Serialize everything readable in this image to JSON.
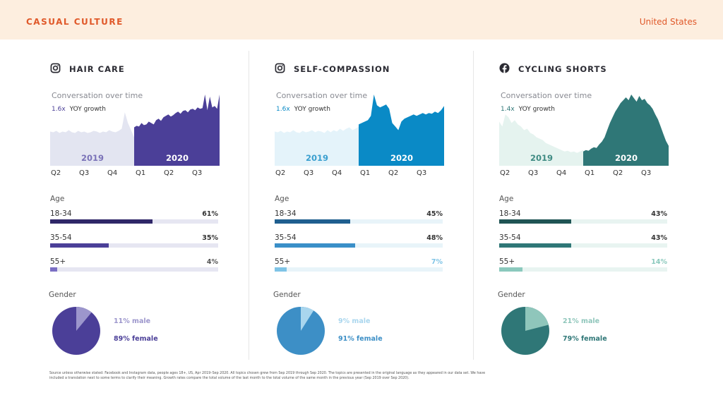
{
  "header": {
    "brand": "CASUAL CULTURE",
    "region": "United States"
  },
  "footnote": "Source unless otherwise stated: Facebook and Instagram data, people ages 18+, US, Apr 2019–Sep 2020. All topics chosen grew from Sep 2019 through Sep 2020. The topics are presented in the original language as they appeared in our data set. We have included a translation next to some terms to clarify their meaning. Growth rates compare the total volume of the last month to the total volume of the same month in the previous year (Sep 2019 over Sep 2020).",
  "chart_data": [
    {
      "type": "area",
      "title": "HAIR CARE",
      "platform": "instagram-icon",
      "subtitle": "Conversation over time",
      "growth_value": "1.6x",
      "growth_label": "YOY growth",
      "quarters": [
        "Q2",
        "Q3",
        "Q4",
        "Q1",
        "Q2",
        "Q3"
      ],
      "years": [
        "2019",
        "2020"
      ],
      "colors": {
        "y2019": "#e3e5f1",
        "y2020": "#4b3f98",
        "year2019_text": "#7a72b8",
        "year2020_text": "#ffffff",
        "accent": "#4b3f98"
      },
      "series_2019": [
        48,
        47,
        49,
        46,
        48,
        47,
        50,
        47,
        46,
        49,
        47,
        48,
        46,
        47,
        49,
        48,
        46,
        48,
        47,
        50,
        48,
        47,
        49,
        52,
        75,
        60,
        50,
        40
      ],
      "series_2020": [
        54,
        56,
        55,
        60,
        57,
        58,
        62,
        60,
        58,
        64,
        66,
        63,
        68,
        70,
        72,
        69,
        71,
        74,
        76,
        73,
        77,
        78,
        75,
        79,
        80,
        78,
        82,
        80,
        81,
        100,
        78,
        97,
        82,
        84,
        80,
        100
      ],
      "age": [
        {
          "label": "18-34",
          "value": 61,
          "color": "#2f2768"
        },
        {
          "label": "35-54",
          "value": 35,
          "color": "#4b3f98"
        },
        {
          "label": "55+",
          "value": 4,
          "color": "#7b6fc4"
        }
      ],
      "age_track": "#e6e6f2",
      "age_value_colors": [
        "#333333",
        "#333333",
        "#555555"
      ],
      "gender": {
        "male": 11,
        "female": 89,
        "male_label": "11% male",
        "female_label": "89% female",
        "male_color": "#9c96cc",
        "female_color": "#4b3f98",
        "male_text": "#9c96cc",
        "female_text": "#4b3f98"
      }
    },
    {
      "type": "area",
      "title": "SELF-COMPASSION",
      "platform": "instagram-icon",
      "subtitle": "Conversation over time",
      "growth_value": "1.6x",
      "growth_label": "YOY growth",
      "quarters": [
        "Q2",
        "Q3",
        "Q4",
        "Q1",
        "Q2",
        "Q3"
      ],
      "years": [
        "2019",
        "2020"
      ],
      "colors": {
        "y2019": "#e4f3fa",
        "y2020": "#0a8ac6",
        "year2019_text": "#3a9fcf",
        "year2020_text": "#ffffff",
        "accent": "#0a8ac6"
      },
      "series_2019": [
        48,
        47,
        49,
        46,
        48,
        47,
        50,
        47,
        46,
        49,
        47,
        48,
        50,
        47,
        49,
        48,
        46,
        50,
        47,
        50,
        48,
        52,
        49,
        52,
        54,
        50,
        52,
        55
      ],
      "series_2020": [
        58,
        60,
        62,
        64,
        70,
        100,
        85,
        82,
        84,
        86,
        80,
        60,
        55,
        50,
        62,
        66,
        68,
        70,
        72,
        70,
        72,
        74,
        72,
        74,
        73,
        76,
        74,
        78,
        84
      ],
      "age": [
        {
          "label": "18-34",
          "value": 45,
          "color": "#1f5f8f"
        },
        {
          "label": "35-54",
          "value": 48,
          "color": "#3a8fc8"
        },
        {
          "label": "55+",
          "value": 7,
          "color": "#7fc4e6"
        }
      ],
      "age_track": "#e8f4f9",
      "age_value_colors": [
        "#333333",
        "#333333",
        "#7fc4e6"
      ],
      "gender": {
        "male": 9,
        "female": 91,
        "male_label": "9% male",
        "female_label": "91% female",
        "male_color": "#a9d6ee",
        "female_color": "#3d8fc6",
        "male_text": "#a9d6ee",
        "female_text": "#3d8fc6"
      }
    },
    {
      "type": "area",
      "title": "CYCLING SHORTS",
      "platform": "facebook-icon",
      "subtitle": "Conversation over time",
      "growth_value": "1.4x",
      "growth_label": "YOY growth",
      "quarters": [
        "Q2",
        "Q3",
        "Q4",
        "Q1",
        "Q2",
        "Q3"
      ],
      "years": [
        "2019",
        "2020"
      ],
      "colors": {
        "y2019": "#e5f3ef",
        "y2020": "#2f7777",
        "year2019_text": "#3f8b83",
        "year2020_text": "#ffffff",
        "accent": "#2f7777"
      },
      "series_2019": [
        62,
        55,
        72,
        68,
        60,
        64,
        58,
        55,
        50,
        52,
        46,
        44,
        40,
        38,
        36,
        32,
        30,
        28,
        26,
        24,
        22,
        20,
        21,
        19,
        20,
        18,
        20,
        22
      ],
      "series_2020": [
        20,
        22,
        21,
        24,
        26,
        25,
        30,
        34,
        40,
        50,
        60,
        68,
        76,
        82,
        88,
        92,
        96,
        92,
        100,
        95,
        90,
        98,
        92,
        94,
        88,
        85,
        80,
        72,
        65,
        55,
        45,
        35,
        28
      ],
      "age": [
        {
          "label": "18-34",
          "value": 43,
          "color": "#1f5454"
        },
        {
          "label": "35-54",
          "value": 43,
          "color": "#2f7777"
        },
        {
          "label": "55+",
          "value": 14,
          "color": "#8bc9bd"
        }
      ],
      "age_track": "#e8f4f1",
      "age_value_colors": [
        "#333333",
        "#333333",
        "#8bc9bd"
      ],
      "gender": {
        "male": 21,
        "female": 79,
        "male_label": "21% male",
        "female_label": "79% female",
        "male_color": "#8fc6bb",
        "female_color": "#2f7777",
        "male_text": "#8fc6bb",
        "female_text": "#2f7777"
      }
    }
  ],
  "labels": {
    "age": "Age",
    "gender": "Gender"
  }
}
